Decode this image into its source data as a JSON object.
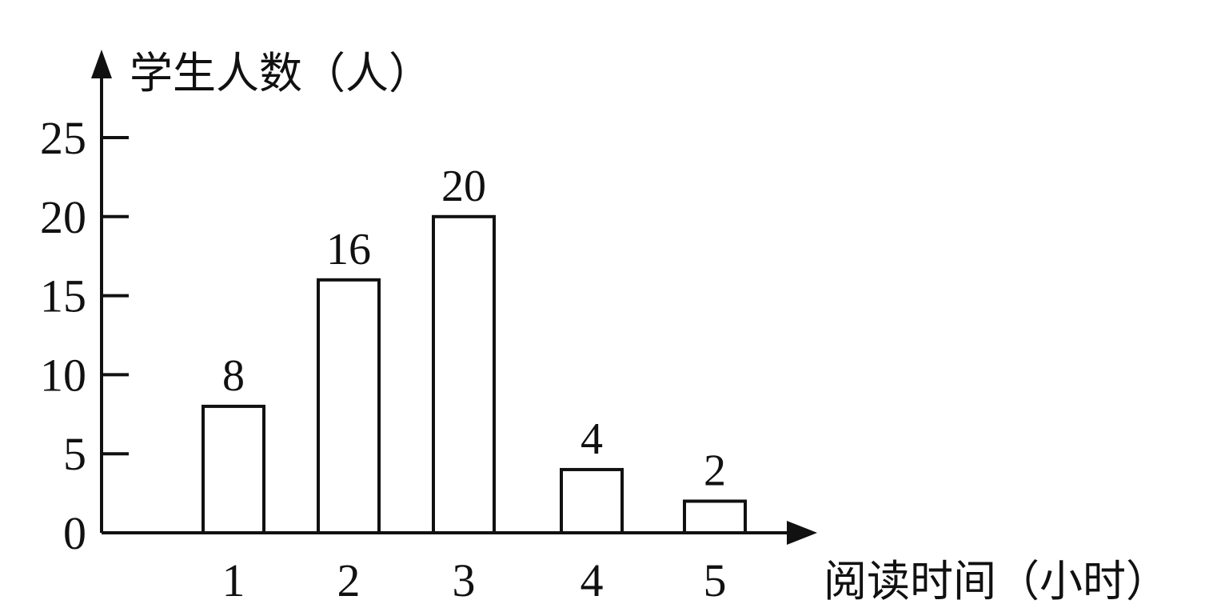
{
  "chart_data": {
    "type": "bar",
    "categories": [
      "1",
      "2",
      "3",
      "4",
      "5"
    ],
    "values": [
      8,
      16,
      20,
      4,
      2
    ],
    "data_labels": [
      "8",
      "16",
      "20",
      "4",
      "2"
    ],
    "title": "",
    "xlabel": "阅读时间（小时）",
    "ylabel": "学生人数（人）",
    "ylim": [
      0,
      25
    ],
    "yticks": [
      0,
      5,
      10,
      15,
      20,
      25
    ],
    "grid": false,
    "bar_fill": "#ffffff",
    "bar_stroke": "#111111"
  }
}
